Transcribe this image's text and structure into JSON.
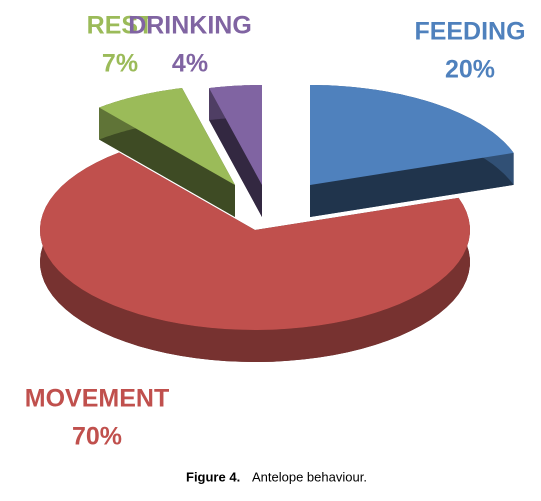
{
  "chart_data": {
    "type": "pie",
    "categories": [
      "FEEDING",
      "MOVEMENT",
      "REST",
      "DRINKING"
    ],
    "values": [
      20,
      70,
      7,
      4
    ],
    "value_labels": [
      "20%",
      "70%",
      "7%",
      "4%"
    ],
    "colors": [
      "#4f81bd",
      "#c0504d",
      "#9bbb59",
      "#8064a2"
    ],
    "caption_label": "Figure 4.",
    "caption": "Antelope behaviour."
  }
}
